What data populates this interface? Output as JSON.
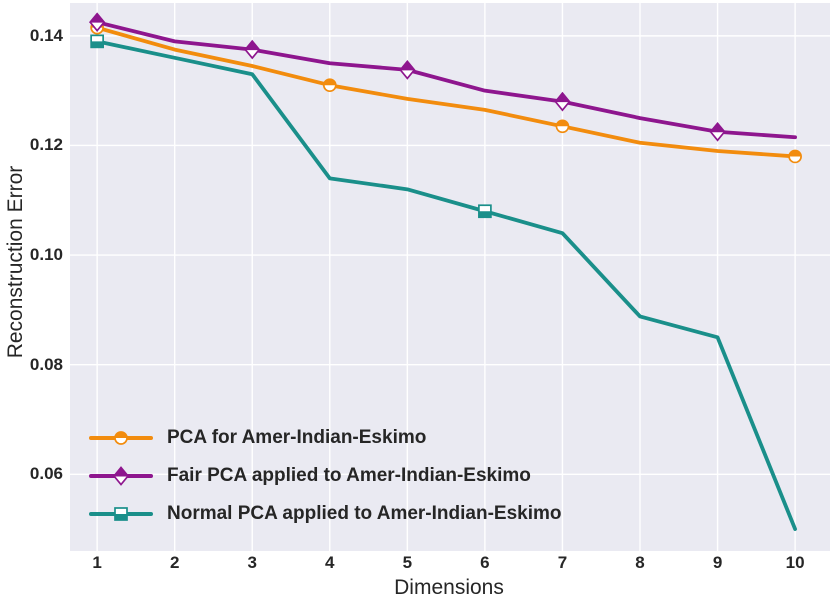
{
  "style": {
    "background": "#ffffff",
    "plot_background": "#eaeaf2",
    "grid_color": "#ffffff",
    "text_color": "#262626"
  },
  "chart_data": {
    "type": "line",
    "title": "",
    "xlabel": "Dimensions",
    "ylabel": "Reconstruction Error",
    "x": [
      1,
      2,
      3,
      4,
      5,
      6,
      7,
      8,
      9,
      10
    ],
    "x_tick_labels": [
      "1",
      "2",
      "3",
      "4",
      "5",
      "6",
      "7",
      "8",
      "9",
      "10"
    ],
    "y_ticks": [
      0.06,
      0.08,
      0.1,
      0.12,
      0.14
    ],
    "y_tick_labels": [
      "0.06",
      "0.08",
      "0.10",
      "0.12",
      "0.14"
    ],
    "xlim": [
      0.65,
      10.45
    ],
    "ylim": [
      0.046,
      0.146
    ],
    "grid": true,
    "legend_position": "lower-left",
    "series": [
      {
        "name": "PCA for Amer-Indian-Eskimo",
        "color": "#f28c0e",
        "marker": "circle",
        "fillstyle": "top",
        "markevery": 3,
        "values": [
          0.1415,
          0.1375,
          0.1345,
          0.131,
          0.1285,
          0.1265,
          0.1235,
          0.1205,
          0.119,
          0.118
        ]
      },
      {
        "name": "Fair PCA applied to Amer-Indian-Eskimo",
        "color": "#8e168e",
        "marker": "diamond",
        "fillstyle": "top",
        "markevery": 2,
        "values": [
          0.1425,
          0.139,
          0.1375,
          0.135,
          0.1338,
          0.13,
          0.128,
          0.125,
          0.1225,
          0.1215
        ]
      },
      {
        "name": "Normal PCA applied to Amer-Indian-Eskimo",
        "color": "#1a8f8a",
        "marker": "square",
        "fillstyle": "bottom",
        "markevery": 5,
        "values": [
          0.139,
          0.136,
          0.133,
          0.114,
          0.112,
          0.108,
          0.104,
          0.0888,
          0.085,
          0.05
        ]
      }
    ]
  }
}
